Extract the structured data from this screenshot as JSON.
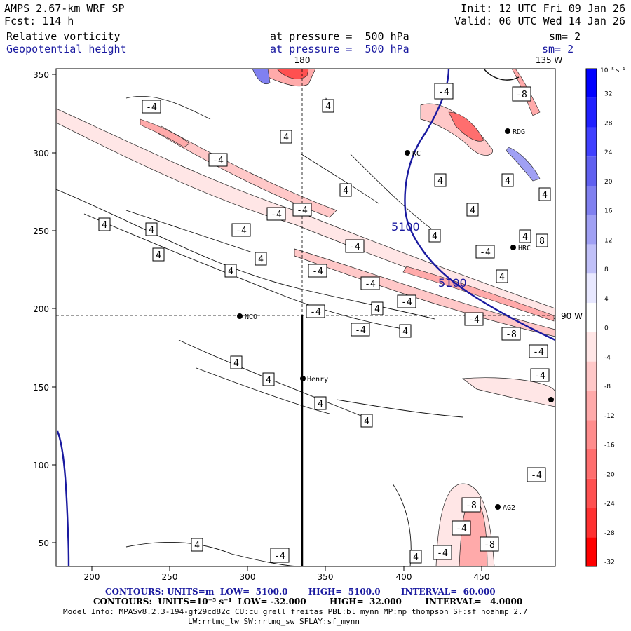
{
  "header": {
    "model": "AMPS 2.67-km WRF SP",
    "fcst": "Fcst: 114 h",
    "init": "Init: 12 UTC Fri 09 Jan 26",
    "valid": "Valid: 06 UTC Wed 14 Jan 26",
    "field1": "Relative vorticity",
    "field1_level": "at pressure =  500 hPa",
    "field1_sm": "sm= 2",
    "field2": "Geopotential height",
    "field2_level": "at pressure =  500 hPa",
    "field2_sm": "sm= 2"
  },
  "map": {
    "top_labels": [
      "180",
      "135 W"
    ],
    "right_label": "90 W",
    "x_ticks": [
      "200",
      "250",
      "300",
      "350",
      "400",
      "450"
    ],
    "y_ticks": [
      "350",
      "300",
      "250",
      "200",
      "150",
      "100",
      "50"
    ],
    "stations": [
      "NCO",
      "Henry",
      "KC",
      "RDG",
      "HRC",
      "AG2"
    ],
    "height_labels": [
      "5100",
      "5100"
    ]
  },
  "colorbar": {
    "units": "10⁻⁵ s⁻¹",
    "ticks": [
      "32",
      "28",
      "24",
      "20",
      "16",
      "12",
      "8",
      "4",
      "0",
      "-4",
      "-8",
      "-12",
      "-16",
      "-20",
      "-24",
      "-28",
      "-32"
    ],
    "colors": [
      "#0000ff",
      "#2020ff",
      "#4040ff",
      "#6060f0",
      "#8080f0",
      "#a0a0f4",
      "#c0c0f8",
      "#e8e8ff",
      "#ffffff",
      "#ffe6e6",
      "#ffc8c8",
      "#ffaaaa",
      "#ff8c8c",
      "#ff6e6e",
      "#ff5050",
      "#ff3030",
      "#ff0000"
    ]
  },
  "footer": {
    "line1": "CONTOURS: UNITS=m  LOW=  5100.0       HIGH=  5100.0       INTERVAL=  60.000",
    "line2": "CONTOURS:  UNITS=10⁻⁵ s⁻¹  LOW= -32.000        HIGH=  32.000        INTERVAL=   4.0000",
    "line3": "Model Info: MPASv8.2.3-194-gf29cd82c CU:cu_grell_freitas PBL:bl_mynn MP:mp_thompson SF:sf_noahmp 2.7",
    "line4": "LW:rrtmg_lw SW:rrtmg_sw SFLAY:sf_mynn"
  }
}
